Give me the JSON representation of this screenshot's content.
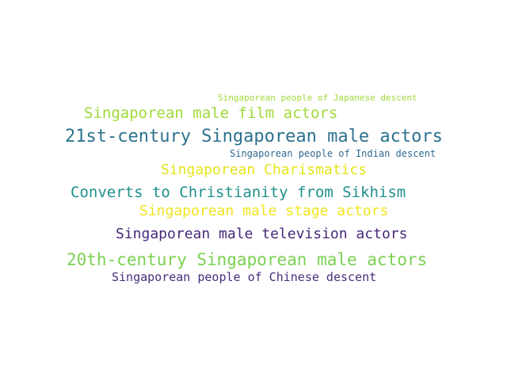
{
  "words": [
    {
      "text": "Singaporean people of Japanese descent",
      "color": "#a0da39"
    },
    {
      "text": "Singaporean male film actors",
      "color": "#a0da39"
    },
    {
      "text": "21st-century Singaporean male actors",
      "color": "#2c728e"
    },
    {
      "text": "Singaporean people of Indian descent",
      "color": "#31688e"
    },
    {
      "text": "Singaporean Charismatics",
      "color": "#e5e419"
    },
    {
      "text": "Converts to Christianity from Sikhism",
      "color": "#21918c"
    },
    {
      "text": "Singaporean male stage actors",
      "color": "#f0e51f"
    },
    {
      "text": "Singaporean male television actors",
      "color": "#482878"
    },
    {
      "text": "20th-century Singaporean male actors",
      "color": "#7ad151"
    },
    {
      "text": "Singaporean people of Chinese descent",
      "color": "#472d7b"
    }
  ]
}
